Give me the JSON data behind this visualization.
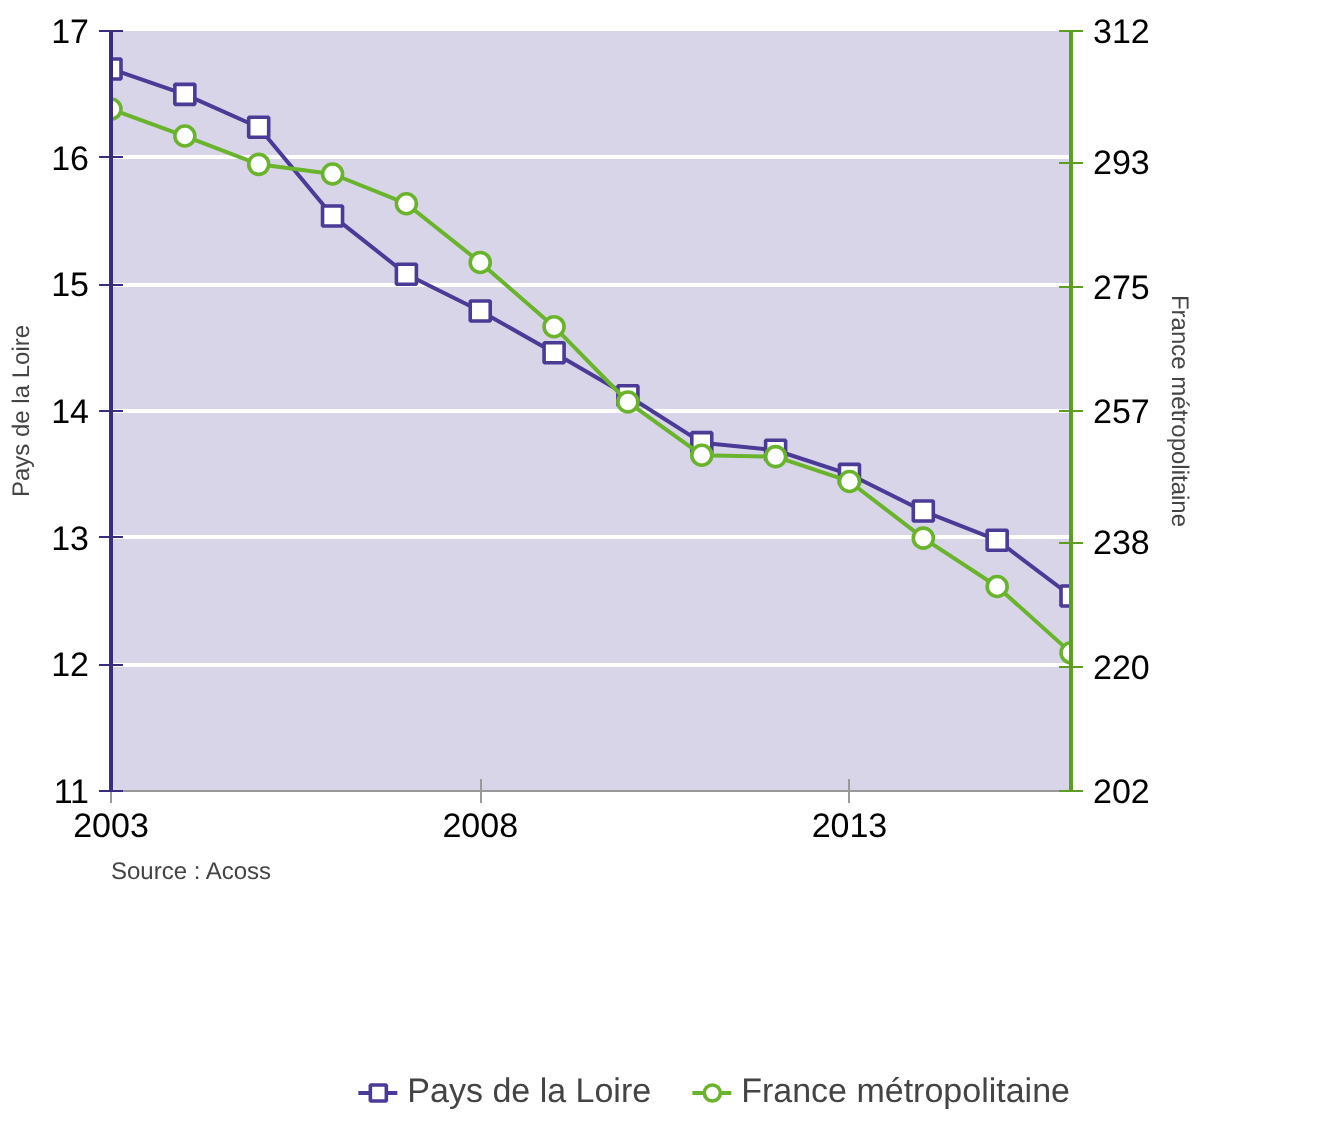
{
  "chart_data": {
    "type": "line",
    "ylabel": "Pays de la Loire",
    "y2label": "France métropolitaine",
    "x": [
      2003,
      2004,
      2005,
      2006,
      2007,
      2008,
      2009,
      2010,
      2011,
      2012,
      2013,
      2014,
      2015,
      2016
    ],
    "xlim": [
      2003,
      2016
    ],
    "xticks": [
      2003,
      2008,
      2013
    ],
    "ylim": [
      11,
      17
    ],
    "yticks": [
      11,
      12,
      13,
      14,
      15,
      16,
      17
    ],
    "y2lim": [
      202,
      312
    ],
    "y2ticks": [
      202,
      220,
      238,
      257,
      275,
      293,
      312
    ],
    "series": [
      {
        "name": "Pays de la Loire",
        "color": "#4b3a96",
        "marker": "square",
        "values": [
          16.7,
          16.5,
          16.24,
          15.54,
          15.08,
          14.79,
          14.46,
          14.12,
          13.75,
          13.69,
          13.5,
          13.21,
          12.98,
          12.54
        ]
      },
      {
        "name": "France métropolitaine",
        "color": "#6ab42d",
        "marker": "circle",
        "axis": "y2",
        "values": [
          300.7,
          296.8,
          292.7,
          291.3,
          287.0,
          278.5,
          269.2,
          258.3,
          250.6,
          250.4,
          246.8,
          238.6,
          231.6,
          222.0
        ]
      }
    ],
    "grid": "y",
    "legend": "bottom",
    "line_style": "solid",
    "annotations": [
      "Source : Acoss"
    ]
  }
}
